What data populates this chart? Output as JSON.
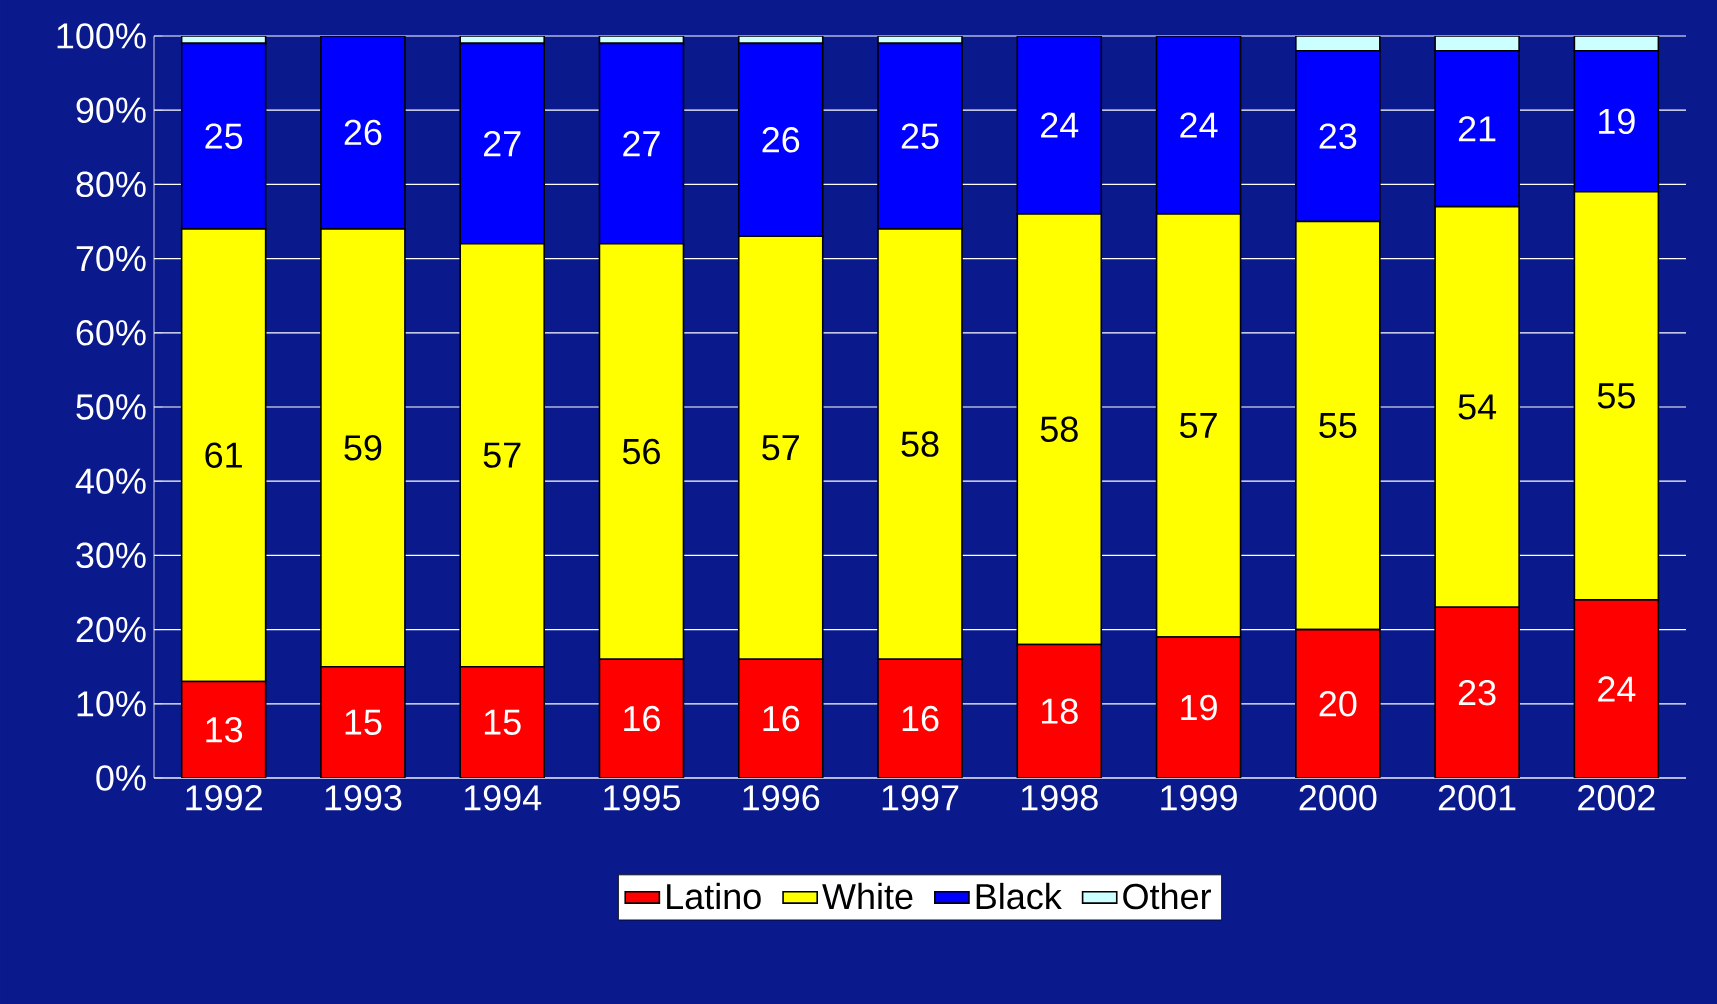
{
  "chart_data": {
    "type": "bar",
    "stacked": true,
    "grid": "y",
    "legend": "bottom",
    "categories": [
      "1992",
      "1993",
      "1994",
      "1995",
      "1996",
      "1997",
      "1998",
      "1999",
      "2000",
      "2001",
      "2002"
    ],
    "ylim": [
      0,
      100
    ],
    "yticks": [
      {
        "value": 0,
        "label": "0%"
      },
      {
        "value": 10,
        "label": "10%"
      },
      {
        "value": 20,
        "label": "20%"
      },
      {
        "value": 30,
        "label": "30%"
      },
      {
        "value": 40,
        "label": "40%"
      },
      {
        "value": 50,
        "label": "50%"
      },
      {
        "value": 60,
        "label": "60%"
      },
      {
        "value": 70,
        "label": "70%"
      },
      {
        "value": 80,
        "label": "80%"
      },
      {
        "value": 90,
        "label": "90%"
      },
      {
        "value": 100,
        "label": "100%"
      }
    ],
    "series": [
      {
        "name": "Latino",
        "color": "#ff0000",
        "values": [
          13,
          15,
          15,
          16,
          16,
          16,
          18,
          19,
          20,
          23,
          24
        ],
        "value_labels": [
          "13",
          "15",
          "15",
          "16",
          "16",
          "16",
          "18",
          "19",
          "20",
          "23",
          "24"
        ]
      },
      {
        "name": "White",
        "color": "#ffff00",
        "values": [
          61,
          59,
          57,
          56,
          57,
          58,
          58,
          57,
          55,
          54,
          55
        ],
        "value_labels": [
          "61",
          "59",
          "57",
          "56",
          "57",
          "58",
          "58",
          "57",
          "55",
          "54",
          "55"
        ]
      },
      {
        "name": "Black",
        "color": "#0000ff",
        "values": [
          25,
          26,
          27,
          27,
          26,
          25,
          24,
          24,
          23,
          21,
          19
        ],
        "value_labels": [
          "25",
          "26",
          "27",
          "27",
          "26",
          "25",
          "24",
          "24",
          "23",
          "21",
          "19"
        ]
      },
      {
        "name": "Other",
        "color": "#ccffff",
        "values": [
          1,
          0,
          1,
          1,
          1,
          1,
          0,
          0,
          2,
          2,
          2
        ]
      }
    ]
  }
}
